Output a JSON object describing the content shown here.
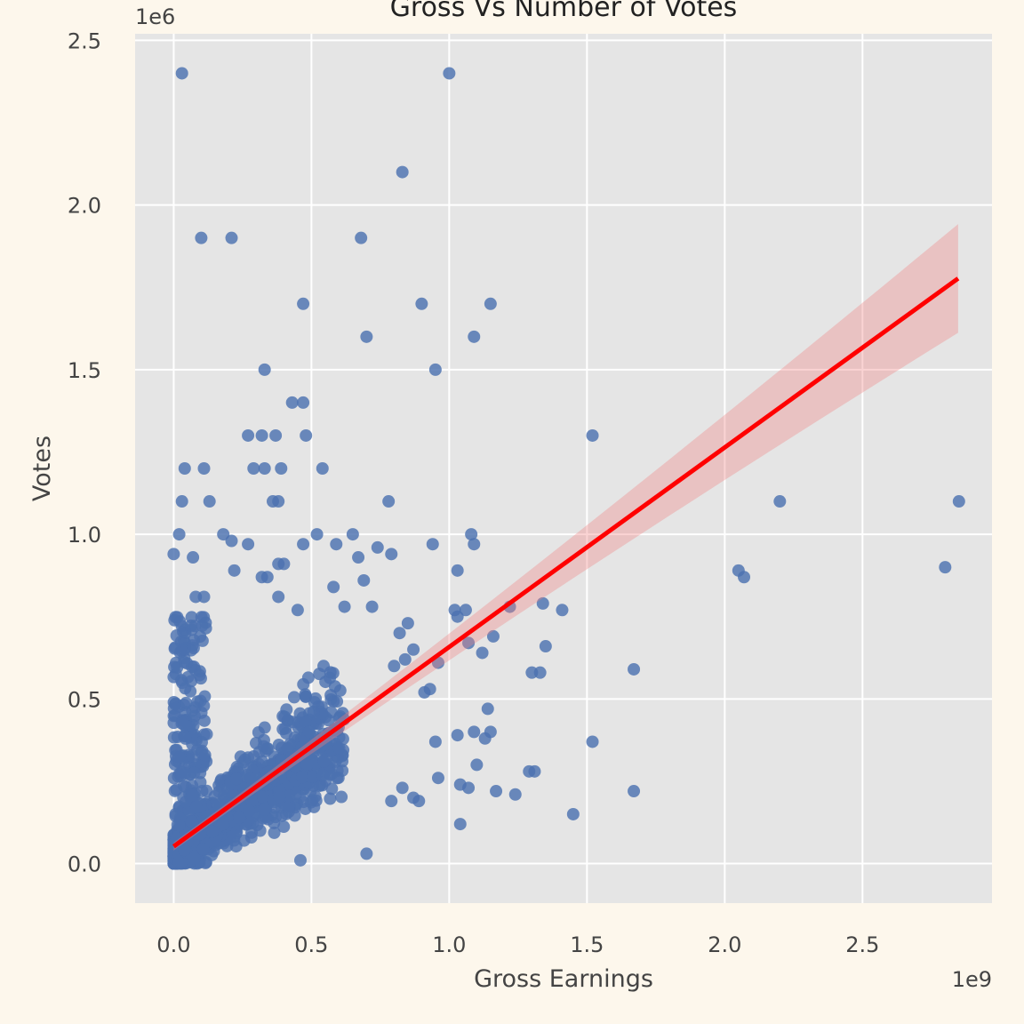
{
  "chart_data": {
    "type": "scatter",
    "title": "Gross Vs Number of Votes",
    "xlabel": "Gross Earnings",
    "ylabel": "Votes",
    "x_offset_label": "1e9",
    "y_offset_label": "1e6",
    "xlim": [
      -0.14,
      2.97
    ],
    "ylim": [
      -0.12,
      2.52
    ],
    "x_ticks": [
      0.0,
      0.5,
      1.0,
      1.5,
      2.0,
      2.5
    ],
    "x_tick_labels": [
      "0.0",
      "0.5",
      "1.0",
      "1.5",
      "2.0",
      "2.5"
    ],
    "y_ticks": [
      0.0,
      0.5,
      1.0,
      1.5,
      2.0,
      2.5
    ],
    "y_tick_labels": [
      "0.0",
      "0.5",
      "1.0",
      "1.5",
      "2.0",
      "2.5"
    ],
    "grid": true,
    "colors": {
      "background": "#fdf7ec",
      "plot_area": "#e5e5e5",
      "grid": "#ffffff",
      "points": "#4c72b0",
      "regression_line": "#ff0000",
      "confidence_band": "#f08080"
    },
    "regression": {
      "x_start": 0.0,
      "y_start": 0.052,
      "x_end": 2.847,
      "y_end": 1.777,
      "band_start_halfwidth": 0.012,
      "band_end_halfwidth": 0.165
    },
    "outlier_points": [
      [
        0.03,
        2.4
      ],
      [
        1.0,
        2.4
      ],
      [
        0.83,
        2.1
      ],
      [
        0.1,
        1.9
      ],
      [
        0.21,
        1.9
      ],
      [
        0.68,
        1.9
      ],
      [
        0.47,
        1.7
      ],
      [
        0.9,
        1.7
      ],
      [
        1.15,
        1.7
      ],
      [
        0.7,
        1.6
      ],
      [
        1.09,
        1.6
      ],
      [
        0.33,
        1.5
      ],
      [
        0.95,
        1.5
      ],
      [
        0.43,
        1.4
      ],
      [
        0.47,
        1.4
      ],
      [
        1.52,
        1.3
      ],
      [
        0.27,
        1.3
      ],
      [
        0.32,
        1.3
      ],
      [
        0.37,
        1.3
      ],
      [
        0.48,
        1.3
      ],
      [
        0.04,
        1.2
      ],
      [
        0.11,
        1.2
      ],
      [
        0.29,
        1.2
      ],
      [
        0.33,
        1.2
      ],
      [
        0.39,
        1.2
      ],
      [
        0.54,
        1.2
      ],
      [
        0.03,
        1.1
      ],
      [
        0.13,
        1.1
      ],
      [
        0.36,
        1.1
      ],
      [
        0.38,
        1.1
      ],
      [
        0.78,
        1.1
      ],
      [
        2.2,
        1.1
      ],
      [
        2.85,
        1.1
      ],
      [
        0.02,
        1.0
      ],
      [
        0.18,
        1.0
      ],
      [
        0.52,
        1.0
      ],
      [
        0.65,
        1.0
      ],
      [
        1.08,
        1.0
      ],
      [
        0.21,
        0.98
      ],
      [
        0.27,
        0.97
      ],
      [
        0.47,
        0.97
      ],
      [
        0.59,
        0.97
      ],
      [
        0.74,
        0.96
      ],
      [
        0.94,
        0.97
      ],
      [
        1.09,
        0.97
      ],
      [
        0.0,
        0.94
      ],
      [
        0.07,
        0.93
      ],
      [
        0.67,
        0.93
      ],
      [
        0.79,
        0.94
      ],
      [
        2.05,
        0.89
      ],
      [
        2.07,
        0.87
      ],
      [
        2.8,
        0.9
      ],
      [
        1.03,
        0.89
      ],
      [
        0.38,
        0.91
      ],
      [
        0.4,
        0.91
      ],
      [
        0.22,
        0.89
      ],
      [
        0.32,
        0.87
      ],
      [
        0.34,
        0.87
      ],
      [
        0.69,
        0.86
      ],
      [
        0.58,
        0.84
      ],
      [
        0.11,
        0.81
      ],
      [
        0.08,
        0.81
      ],
      [
        0.38,
        0.81
      ],
      [
        1.22,
        0.78
      ],
      [
        1.34,
        0.79
      ],
      [
        1.41,
        0.77
      ],
      [
        1.02,
        0.77
      ],
      [
        1.06,
        0.77
      ],
      [
        0.72,
        0.78
      ],
      [
        0.45,
        0.77
      ],
      [
        0.62,
        0.78
      ],
      [
        1.3,
        0.58
      ],
      [
        1.33,
        0.58
      ],
      [
        1.35,
        0.66
      ],
      [
        1.67,
        0.59
      ],
      [
        1.52,
        0.37
      ],
      [
        1.67,
        0.22
      ],
      [
        1.45,
        0.15
      ],
      [
        1.31,
        0.28
      ],
      [
        1.29,
        0.28
      ],
      [
        1.17,
        0.22
      ],
      [
        1.24,
        0.21
      ],
      [
        1.07,
        0.23
      ],
      [
        1.04,
        0.12
      ],
      [
        0.7,
        0.03
      ],
      [
        0.46,
        0.01
      ],
      [
        1.13,
        0.38
      ],
      [
        1.15,
        0.4
      ],
      [
        1.09,
        0.4
      ],
      [
        1.03,
        0.39
      ],
      [
        0.95,
        0.37
      ],
      [
        1.14,
        0.47
      ],
      [
        1.1,
        0.3
      ],
      [
        0.96,
        0.26
      ],
      [
        1.04,
        0.24
      ],
      [
        0.87,
        0.2
      ],
      [
        0.89,
        0.19
      ],
      [
        0.83,
        0.23
      ],
      [
        0.79,
        0.19
      ],
      [
        1.12,
        0.64
      ],
      [
        1.07,
        0.67
      ],
      [
        1.16,
        0.69
      ],
      [
        1.03,
        0.75
      ],
      [
        0.96,
        0.61
      ],
      [
        0.91,
        0.52
      ],
      [
        0.93,
        0.53
      ],
      [
        0.85,
        0.73
      ],
      [
        0.82,
        0.7
      ],
      [
        0.87,
        0.65
      ],
      [
        0.84,
        0.62
      ],
      [
        0.8,
        0.6
      ]
    ]
  }
}
